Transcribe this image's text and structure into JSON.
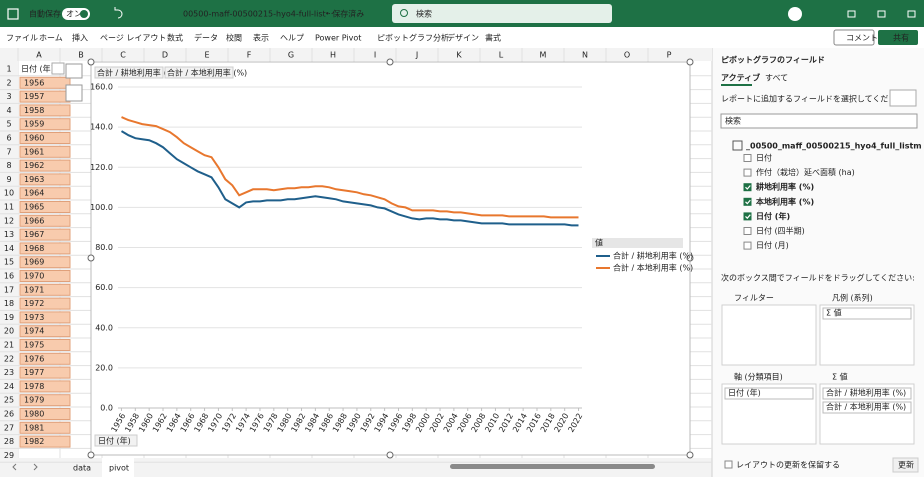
{
  "title_bar": {
    "autosave": "自動保存",
    "toggle": "オン",
    "filename": "00500-maff-00500215-hyo4-full-list···",
    "status": "• 保存済み",
    "search": "検索"
  },
  "menu": {
    "tabs": [
      "ファイル",
      "ホーム",
      "挿入",
      "ページ レイアウト",
      "数式",
      "データ",
      "校閲",
      "表示",
      "ヘルプ",
      "Power Pivot",
      "ピボットグラフ分析",
      "デザイン",
      "書式"
    ],
    "comment": "コメント",
    "share": "共有"
  },
  "sheet": {
    "columns": [
      "A",
      "B",
      "C",
      "D",
      "E",
      "F",
      "G",
      "H",
      "I",
      "J",
      "K",
      "L",
      "M",
      "N",
      "O",
      "P"
    ],
    "rows": [
      1,
      2,
      3,
      4,
      5,
      6,
      7,
      8,
      9,
      10,
      11,
      12,
      13,
      14,
      15,
      16,
      17,
      18,
      19,
      20,
      21,
      22,
      23,
      24,
      25,
      26,
      27,
      28,
      29
    ],
    "header_cell": "日付 (年)",
    "row_labels": [
      1956,
      1957,
      1958,
      1959,
      1960,
      1961,
      1962,
      1963,
      1964,
      1965,
      1966,
      1967,
      1968,
      1969,
      1970,
      1971,
      1972,
      1973,
      1974,
      1975,
      1976,
      1977,
      1978,
      1979,
      1980,
      1981,
      1982
    ]
  },
  "chart_data": {
    "type": "line",
    "x": [
      1956,
      1957,
      1958,
      1959,
      1960,
      1961,
      1962,
      1963,
      1964,
      1965,
      1966,
      1967,
      1968,
      1969,
      1970,
      1971,
      1972,
      1973,
      1974,
      1975,
      1976,
      1977,
      1978,
      1979,
      1980,
      1981,
      1982,
      1983,
      1984,
      1985,
      1986,
      1987,
      1988,
      1989,
      1990,
      1991,
      1992,
      1993,
      1994,
      1995,
      1996,
      1997,
      1998,
      1999,
      2000,
      2001,
      2002,
      2003,
      2004,
      2005,
      2006,
      2007,
      2008,
      2009,
      2010,
      2011,
      2012,
      2013,
      2014,
      2015,
      2016,
      2017,
      2018,
      2019,
      2020,
      2021,
      2022
    ],
    "series": [
      {
        "name": "合計 / 耕地利用率 (%)",
        "color": "#1f5f8b",
        "values": [
          138,
          136,
          134.5,
          134,
          133.5,
          132,
          130,
          127,
          124,
          122,
          120,
          118,
          116.5,
          115,
          110,
          104,
          102,
          100,
          102.5,
          103,
          103,
          103.5,
          103.5,
          103.5,
          104,
          104,
          104.5,
          105,
          105.5,
          105,
          104.5,
          104,
          103,
          102.5,
          102,
          101.5,
          101,
          100,
          99.5,
          98,
          96.5,
          95.5,
          94.5,
          94,
          94.5,
          94.5,
          94,
          94,
          93.5,
          93.5,
          93,
          92.5,
          92,
          92,
          92,
          92,
          91.5,
          91.5,
          91.5,
          91.5,
          91.5,
          91.5,
          91.5,
          91.5,
          91.5,
          91,
          91
        ]
      },
      {
        "name": "合計 / 本地利用率 (%)",
        "color": "#e8772e",
        "values": [
          145,
          143.5,
          142.5,
          141.5,
          141,
          140.5,
          139,
          137.5,
          135,
          132,
          130,
          128,
          126,
          125,
          120,
          114,
          111,
          106,
          107.5,
          109,
          109,
          109,
          108.5,
          109,
          109.5,
          109.5,
          110,
          110,
          110.5,
          110.5,
          110,
          109,
          108.5,
          108,
          107.5,
          106.5,
          106,
          105,
          104,
          102,
          100.5,
          100,
          98.5,
          98.5,
          98.5,
          98.5,
          98,
          98,
          97.5,
          97.5,
          97,
          96.5,
          96,
          96,
          96,
          96,
          95.5,
          95.5,
          95.5,
          95.5,
          95.5,
          95.5,
          95,
          95,
          95,
          95,
          95
        ]
      }
    ],
    "xlim": [
      1955.5,
      2022.5
    ],
    "xticks": [
      1956,
      1958,
      1960,
      1962,
      1964,
      1966,
      1968,
      1970,
      1972,
      1974,
      1976,
      1978,
      1980,
      1982,
      1984,
      1986,
      1988,
      1990,
      1992,
      1994,
      1996,
      1998,
      2000,
      2002,
      2004,
      2006,
      2008,
      2010,
      2012,
      2014,
      2016,
      2018,
      2020,
      2022
    ],
    "ylim": [
      0,
      160
    ],
    "yticks": [
      {
        "value": 0,
        "label": "0.0"
      },
      {
        "value": 20,
        "label": "20.0"
      },
      {
        "value": 40,
        "label": "40.0"
      },
      {
        "value": 60,
        "label": "60.0"
      },
      {
        "value": 80,
        "label": "80.0"
      },
      {
        "value": 100,
        "label": "100.0"
      },
      {
        "value": 120,
        "label": "120.0"
      },
      {
        "value": 140,
        "label": "140.0"
      },
      {
        "value": 160,
        "label": "160.0"
      }
    ],
    "grid": true,
    "legend_title": "値",
    "axis_button": "日付 (年)"
  },
  "sheet_tabs": [
    "data",
    "pivot"
  ],
  "field_panel": {
    "title": "ピボットグラフのフィールド",
    "tabs": [
      "アクティブ",
      "すべて"
    ],
    "prompt": "レポートに追加するフィールドを選択してください:",
    "search": "検索",
    "table": "_00500_maff_00500215_hyo4_full_listm",
    "fields": [
      {
        "label": "日付",
        "checked": false
      },
      {
        "label": "作付（栽培）延べ面積 (ha)",
        "checked": false
      },
      {
        "label": "耕地利用率 (%)",
        "checked": true
      },
      {
        "label": "本地利用率 (%)",
        "checked": true
      },
      {
        "label": "日付 (年)",
        "checked": true
      },
      {
        "label": "日付 (四半期)",
        "checked": false
      },
      {
        "label": "日付 (月)",
        "checked": false
      }
    ],
    "drag_prompt": "次のボックス間でフィールドをドラッグしてください:",
    "filter": "フィルター",
    "legend": "凡例 (系列)",
    "legend_item": "Σ 値",
    "axis": "軸 (分類項目)",
    "values": "Σ 値",
    "defer": "レイアウトの更新を保留する",
    "update": "更新"
  }
}
